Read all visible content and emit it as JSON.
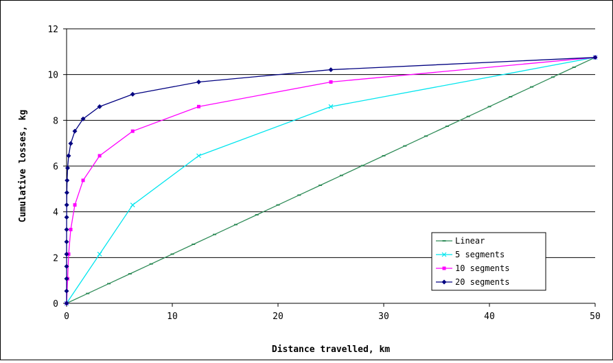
{
  "chart_data": {
    "type": "line",
    "title": "",
    "xlabel": "Distance travelled, km",
    "ylabel": "Cumulative losses, kg",
    "xlim": [
      0,
      50
    ],
    "ylim": [
      0,
      12
    ],
    "x_ticks": [
      "0",
      "10",
      "20",
      "30",
      "40",
      "50"
    ],
    "y_ticks": [
      "0",
      "2",
      "4",
      "6",
      "8",
      "10",
      "12"
    ],
    "grid": "horizontal",
    "legend_position": "bottom-right",
    "series": [
      {
        "name": "Linear",
        "color": "#2E8B57",
        "marker": "dash",
        "x": [
          0,
          2,
          4,
          6,
          8,
          10,
          12,
          14,
          16,
          18,
          20,
          22,
          24,
          26,
          28,
          30,
          32,
          34,
          36,
          38,
          40,
          42,
          44,
          46,
          48,
          50
        ],
        "y": [
          0,
          0.43,
          0.86,
          1.29,
          1.72,
          2.15,
          2.58,
          3.01,
          3.44,
          3.87,
          4.3,
          4.73,
          5.16,
          5.59,
          6.02,
          6.45,
          6.88,
          7.31,
          7.74,
          8.17,
          8.6,
          9.03,
          9.46,
          9.89,
          10.32,
          10.75
        ]
      },
      {
        "name": "5 segments",
        "color": "#00E5EE",
        "marker": "x",
        "x": [
          0,
          3.125,
          6.25,
          12.5,
          25,
          50
        ],
        "y": [
          0,
          2.15,
          4.3,
          6.45,
          8.6,
          10.75
        ]
      },
      {
        "name": "10 segments",
        "color": "#FF00FF",
        "marker": "square",
        "x": [
          0,
          0.0977,
          0.1953,
          0.3906,
          0.7813,
          1.5625,
          3.125,
          6.25,
          12.5,
          25,
          50
        ],
        "y": [
          0,
          1.075,
          2.15,
          3.225,
          4.3,
          5.375,
          6.45,
          7.525,
          8.6,
          9.675,
          10.75
        ]
      },
      {
        "name": "20 segments",
        "color": "#000080",
        "marker": "diamond",
        "x": [
          0,
          0.0001,
          0.0002,
          0.0004,
          0.0008,
          0.0015,
          0.0031,
          0.0061,
          0.0122,
          0.0244,
          0.0488,
          0.0977,
          0.1953,
          0.3906,
          0.7813,
          1.5625,
          3.125,
          6.25,
          12.5,
          25,
          50
        ],
        "y": [
          0,
          0.5375,
          1.075,
          1.6125,
          2.15,
          2.6875,
          3.225,
          3.7625,
          4.3,
          4.8375,
          5.375,
          5.9125,
          6.45,
          6.9875,
          7.525,
          8.0625,
          8.6,
          9.1375,
          9.675,
          10.2125,
          10.75
        ]
      }
    ]
  }
}
